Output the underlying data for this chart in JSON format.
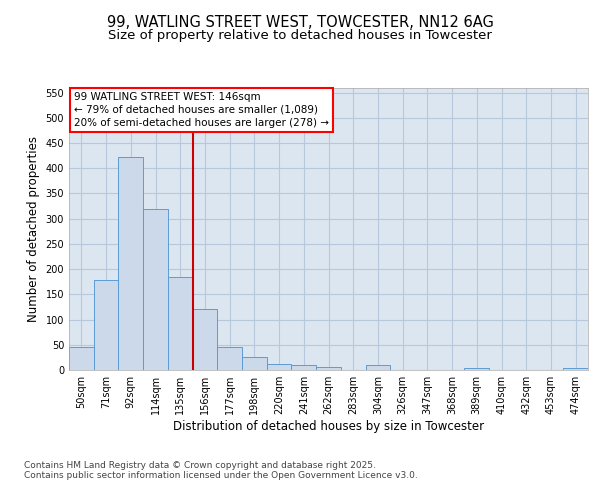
{
  "title_line1": "99, WATLING STREET WEST, TOWCESTER, NN12 6AG",
  "title_line2": "Size of property relative to detached houses in Towcester",
  "xlabel": "Distribution of detached houses by size in Towcester",
  "ylabel": "Number of detached properties",
  "categories": [
    "50sqm",
    "71sqm",
    "92sqm",
    "114sqm",
    "135sqm",
    "156sqm",
    "177sqm",
    "198sqm",
    "220sqm",
    "241sqm",
    "262sqm",
    "283sqm",
    "304sqm",
    "326sqm",
    "347sqm",
    "368sqm",
    "389sqm",
    "410sqm",
    "432sqm",
    "453sqm",
    "474sqm"
  ],
  "values": [
    45,
    178,
    422,
    320,
    185,
    120,
    45,
    25,
    12,
    10,
    5,
    0,
    10,
    0,
    0,
    0,
    3,
    0,
    0,
    0,
    3
  ],
  "bar_color": "#ccd9ea",
  "bar_edge_color": "#5b9bd5",
  "grid_color": "#b8c8dc",
  "background_color": "#dce6f1",
  "vline_x": 4.5,
  "vline_color": "#cc0000",
  "annotation_line1": "99 WATLING STREET WEST: 146sqm",
  "annotation_line2": "← 79% of detached houses are smaller (1,089)",
  "annotation_line3": "20% of semi-detached houses are larger (278) →",
  "ylim": [
    0,
    560
  ],
  "yticks": [
    0,
    50,
    100,
    150,
    200,
    250,
    300,
    350,
    400,
    450,
    500,
    550
  ],
  "footer_line1": "Contains HM Land Registry data © Crown copyright and database right 2025.",
  "footer_line2": "Contains public sector information licensed under the Open Government Licence v3.0.",
  "title_fontsize": 10.5,
  "subtitle_fontsize": 9.5,
  "tick_fontsize": 7,
  "label_fontsize": 8.5,
  "annotation_fontsize": 7.5,
  "footer_fontsize": 6.5
}
